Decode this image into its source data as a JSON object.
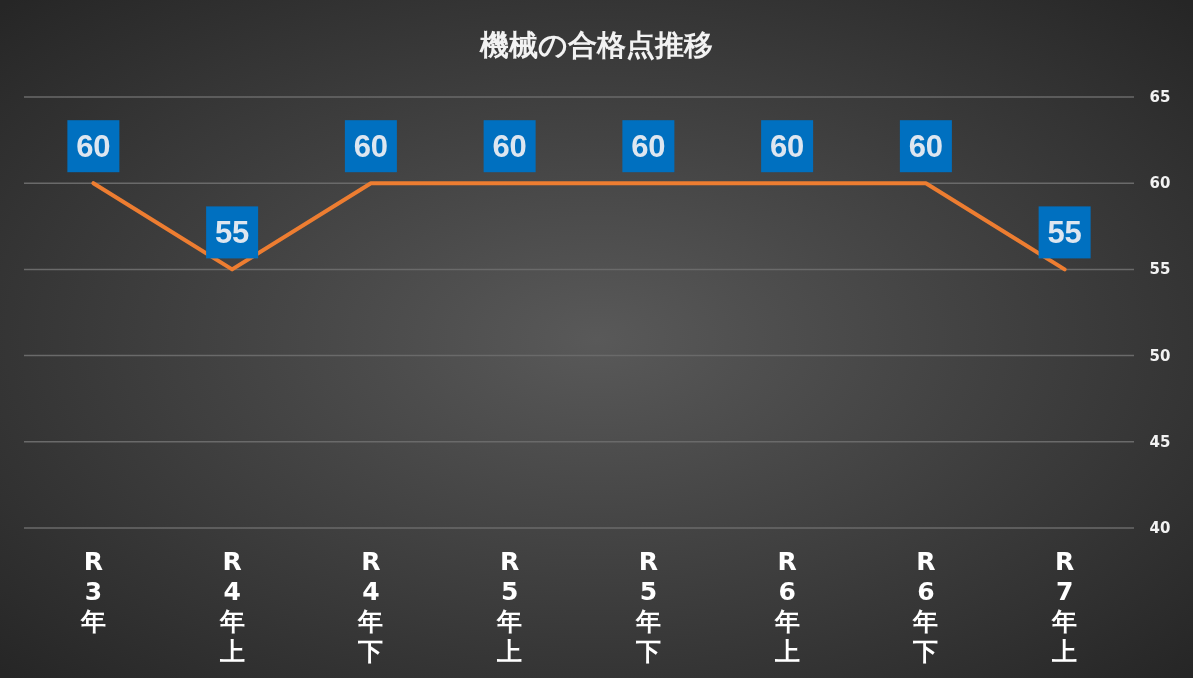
{
  "chart_data": {
    "type": "line",
    "title": "機械の合格点推移",
    "categories": [
      "R3年",
      "R4年上",
      "R4年下",
      "R5年上",
      "R5年下",
      "R6年上",
      "R6年下",
      "R7年上"
    ],
    "series": [
      {
        "color": "#ed7d31",
        "values": [
          60,
          55,
          60,
          60,
          60,
          60,
          60,
          55
        ]
      }
    ],
    "ylim": [
      40,
      65
    ],
    "yticks": [
      40,
      45,
      50,
      55,
      60,
      65
    ],
    "grid": "y",
    "data_labels": true,
    "marker": "none",
    "line_style": "solid"
  }
}
